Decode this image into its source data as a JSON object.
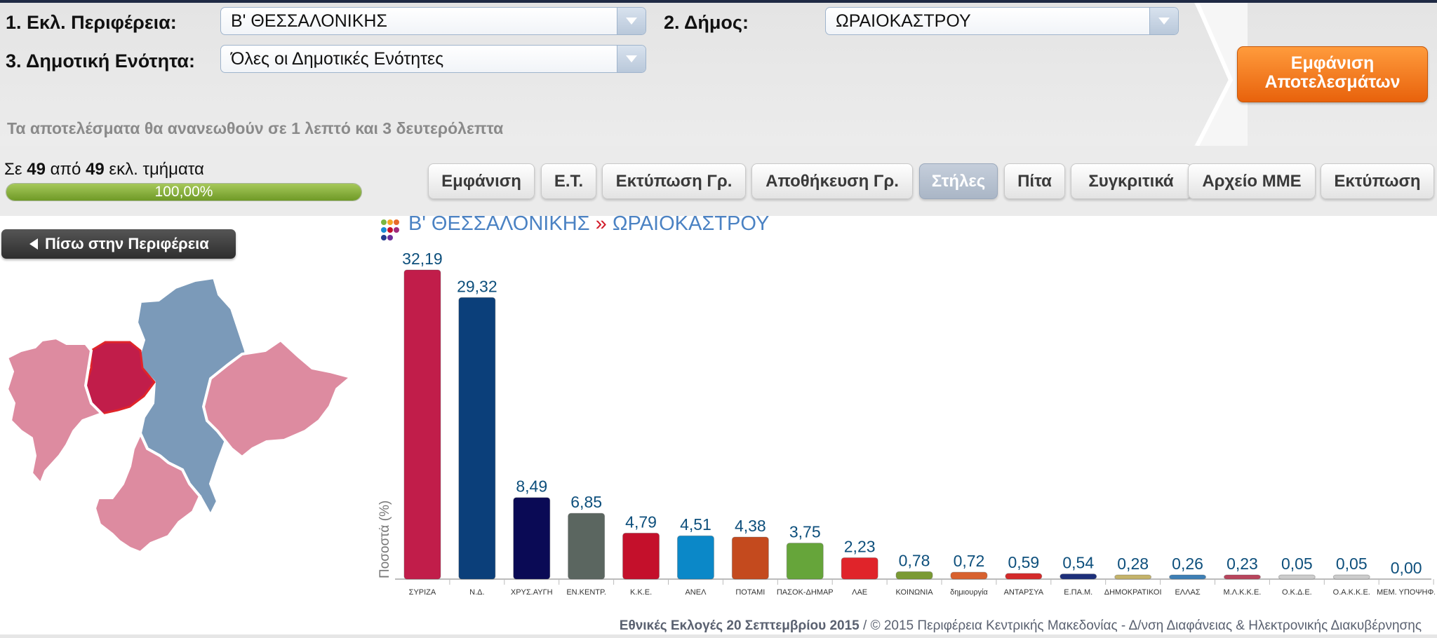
{
  "filters": {
    "region_label": "1. Εκλ. Περιφέρεια:",
    "region_value": "Β' ΘΕΣΣΑΛΟΝΙΚΗΣ",
    "municipality_label": "2. Δήμος:",
    "municipality_value": "ΩΡΑΙΟΚΑΣΤΡΟΥ",
    "unit_label": "3. Δημοτική Ενότητα:",
    "unit_value": "Όλες οι Δημοτικές Ενότητες",
    "show_results": "Εμφάνιση Αποτελεσμάτων",
    "countdown": "Τα αποτελέσματα θα ανανεωθούν σε 1 λεπτό και 3 δευτερόλεπτα"
  },
  "status": {
    "prefix": "Σε",
    "counted": "49",
    "middle": "από",
    "total": "49",
    "suffix": "εκλ. τμήματα",
    "progress_text": "100,00%",
    "progress_fraction": 1.0
  },
  "toolbar": {
    "buttons": [
      "Εμφάνιση",
      "Ε.Τ.",
      "Εκτύπωση Γρ.",
      "Αποθήκευση Γρ.",
      "Στήλες",
      "Πίτα",
      "Συγκριτικά",
      "Αρχείο ΜΜΕ",
      "Εκτύπωση"
    ],
    "active": "Στήλες"
  },
  "back_button": "Πίσω στην Περιφέρεια",
  "breadcrumb": {
    "region": "Β' ΘΕΣΣΑΛΟΝΙΚΗΣ",
    "separator": "»",
    "municipality": "ΩΡΑΙΟΚΑΣΤΡΟΥ"
  },
  "chart_data": {
    "type": "bar",
    "title": "",
    "ylabel": "Ποσοστά (%)",
    "xlabel": "",
    "ylim": [
      0,
      32.19
    ],
    "grid": false,
    "categories": [
      "ΣΥΡΙΖΑ",
      "Ν.Δ.",
      "ΧΡΥΣ.ΑΥΓΗ",
      "ΕΝ.ΚΕΝΤΡ.",
      "Κ.Κ.Ε.",
      "ΑΝΕΛ",
      "ΠΟΤΑΜΙ",
      "ΠΑΣΟΚ-ΔΗΜΑΡ",
      "ΛΑΕ",
      "ΚΟΙΝΩΝΙΑ",
      "δημιουργία",
      "ΑΝΤΑΡΣΥΑ",
      "Ε.ΠΑ.Μ.",
      "ΔΗΜΟΚΡΑΤΙΚΟΙ",
      "ΕΛΛΑΣ",
      "Μ.Λ.Κ.Κ.Ε.",
      "Ο.Κ.Δ.Ε.",
      "Ο.Α.Κ.Κ.Ε.",
      "ΜΕΜ. ΥΠΟΨΗΦ."
    ],
    "values": [
      32.19,
      29.32,
      8.49,
      6.85,
      4.79,
      4.51,
      4.38,
      3.75,
      2.23,
      0.78,
      0.72,
      0.59,
      0.54,
      0.28,
      0.26,
      0.23,
      0.05,
      0.05,
      0.0
    ],
    "labels": [
      "32,19",
      "29,32",
      "8,49",
      "6,85",
      "4,79",
      "4,51",
      "4,38",
      "3,75",
      "2,23",
      "0,78",
      "0,72",
      "0,59",
      "0,54",
      "0,28",
      "0,26",
      "0,23",
      "0,05",
      "0,05",
      "0,00"
    ],
    "colors": [
      "#c11d4a",
      "#0b3f7a",
      "#0a0a55",
      "#5b6660",
      "#c4102b",
      "#0b88c8",
      "#c44a1e",
      "#66a53a",
      "#e0242a",
      "#7a9a34",
      "#d8612e",
      "#d42a2a",
      "#1d2f7a",
      "#c4b36a",
      "#3d7fb5",
      "#b8445c",
      "#cccccc",
      "#cccccc",
      "#cccccc"
    ]
  },
  "footer": {
    "bold": "Εθνικές Εκλογές 20 Σεπτεμβρίου 2015",
    "rest": " / © 2015 Περιφέρεια Κεντρικής Μακεδονίας - Δ/νση Διαφάνειας & Ηλεκτρονικής Διακυβέρνησης"
  },
  "colors": {
    "accent_orange": "#f07218",
    "selected_region": "#c11d4a",
    "municipality_region": "#7b9ab9",
    "neighbor_region": "#dd8ba0"
  }
}
